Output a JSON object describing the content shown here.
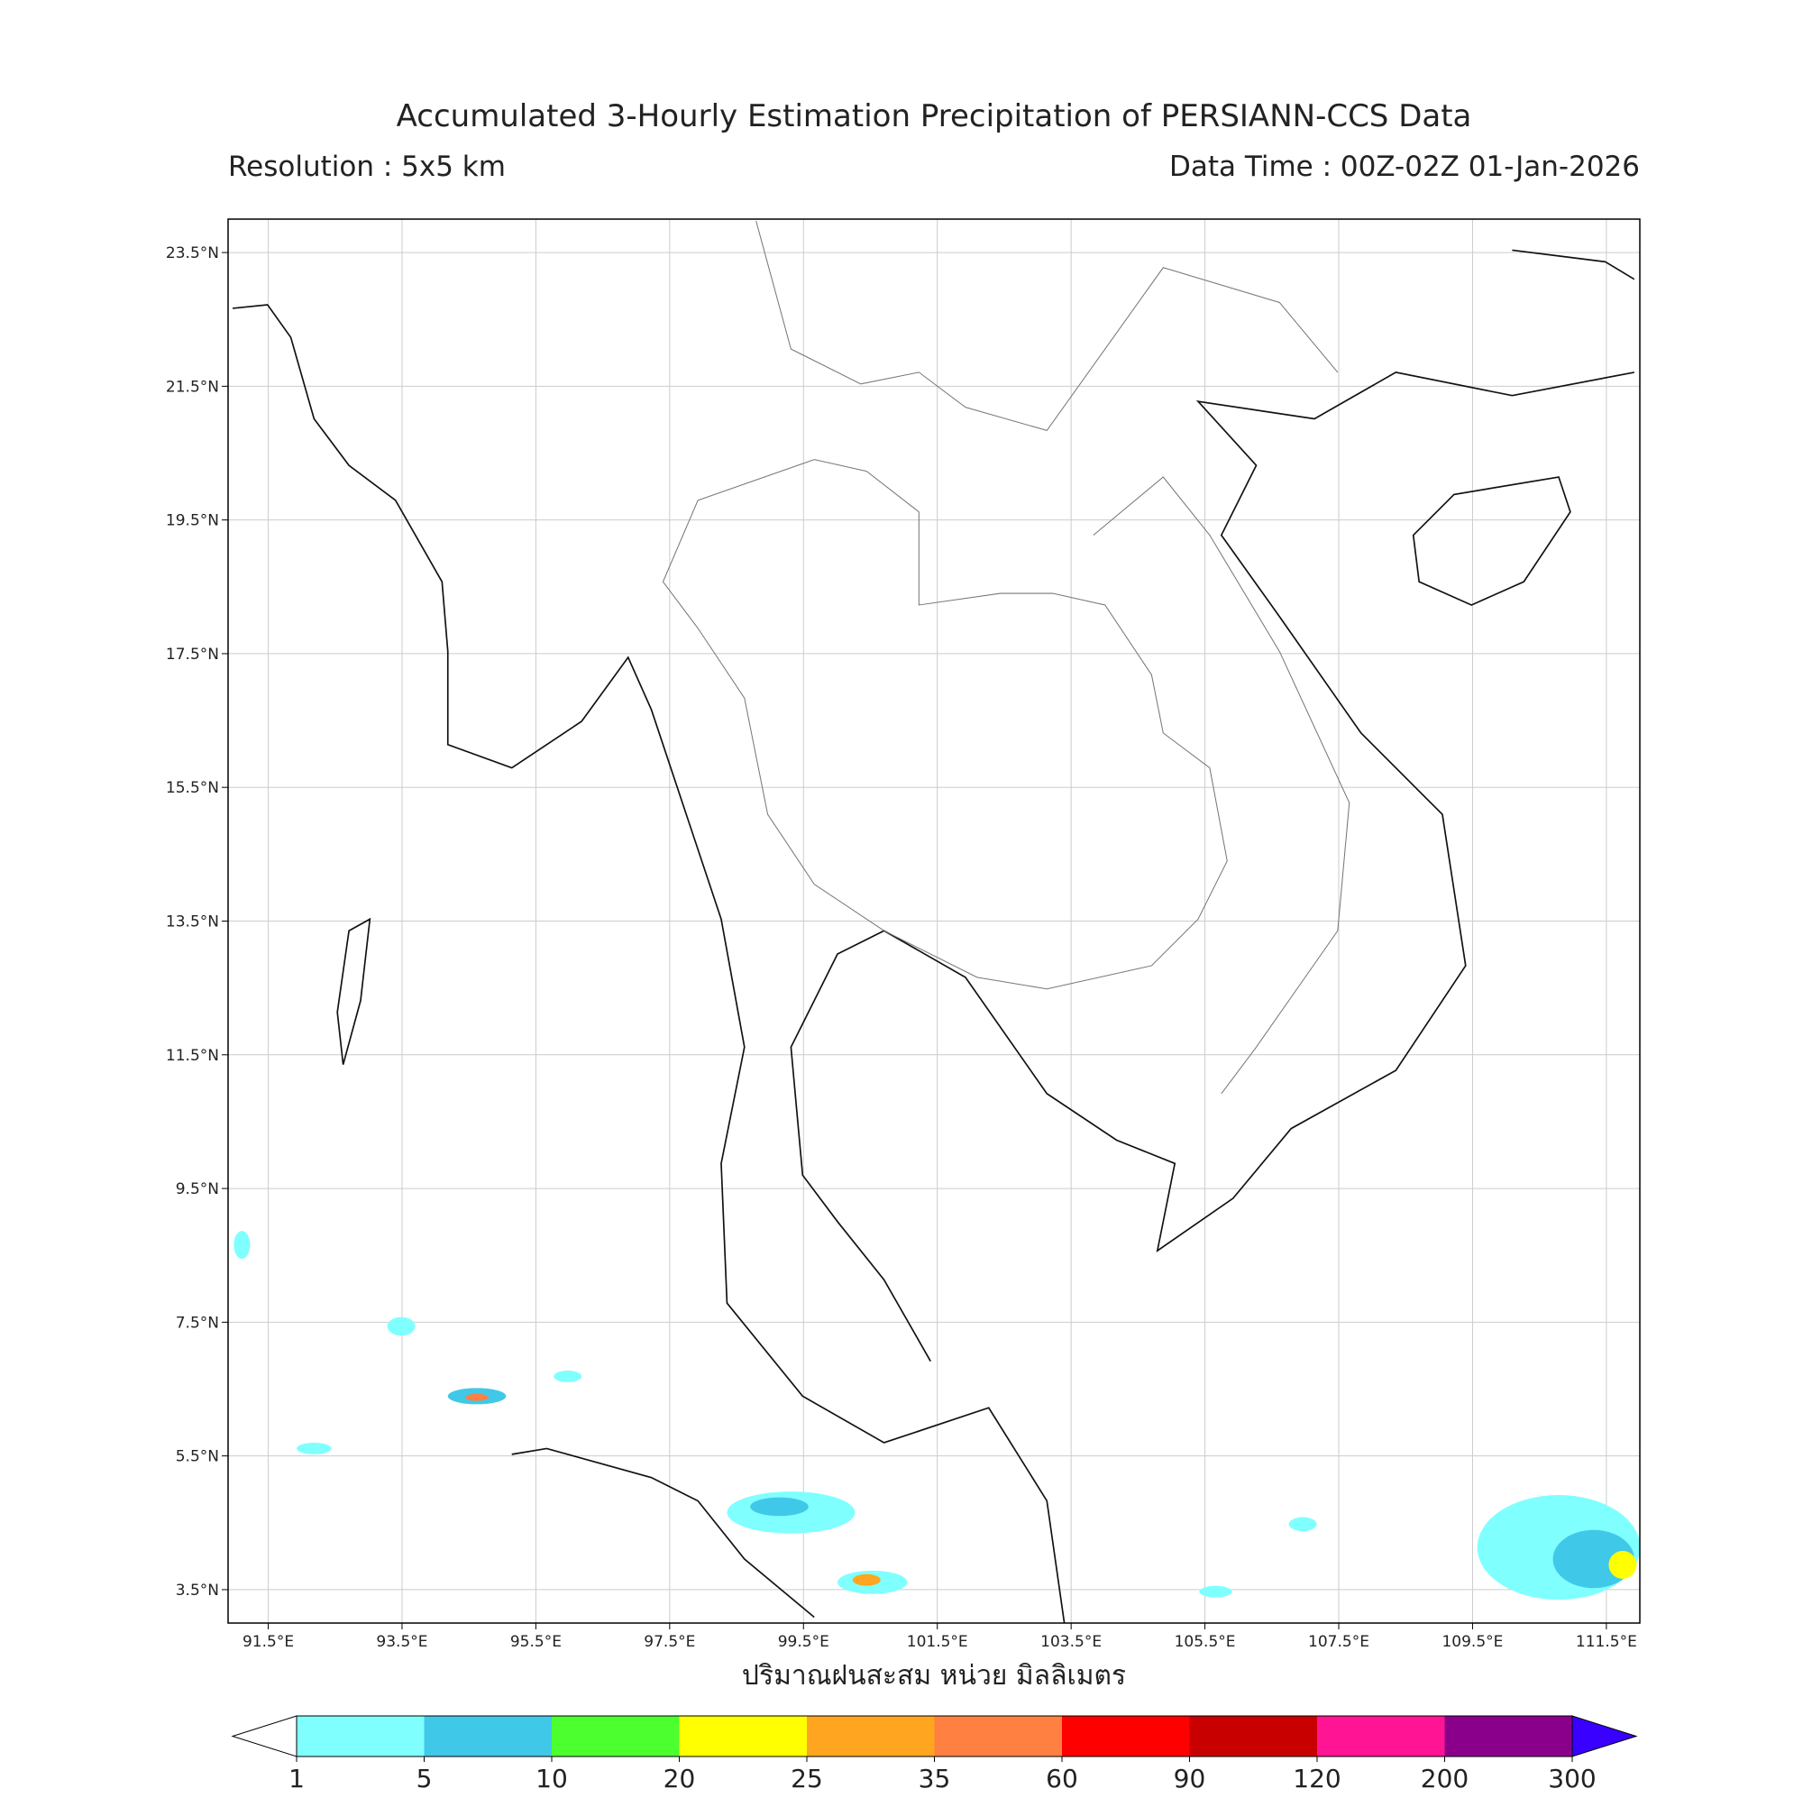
{
  "header": {
    "title": "Accumulated 3-Hourly Estimation Precipitation of PERSIANN-CCS Data",
    "resolution": "Resolution : 5x5 km",
    "data_time": "Data Time : 00Z-02Z 01-Jan-2026"
  },
  "map": {
    "lonlim": [
      90.9,
      112.0
    ],
    "latlim": [
      3.0,
      24.0
    ],
    "grid": true,
    "lonticks": [
      {
        "value": 91.5,
        "label": "91.5°E"
      },
      {
        "value": 93.5,
        "label": "93.5°E"
      },
      {
        "value": 95.5,
        "label": "95.5°E"
      },
      {
        "value": 97.5,
        "label": "97.5°E"
      },
      {
        "value": 99.5,
        "label": "99.5°E"
      },
      {
        "value": 101.5,
        "label": "101.5°E"
      },
      {
        "value": 103.5,
        "label": "103.5°E"
      },
      {
        "value": 105.5,
        "label": "105.5°E"
      },
      {
        "value": 107.5,
        "label": "107.5°E"
      },
      {
        "value": 109.5,
        "label": "109.5°E"
      },
      {
        "value": 111.5,
        "label": "111.5°E"
      }
    ],
    "latticks": [
      {
        "value": 3.5,
        "label": "3.5°N"
      },
      {
        "value": 5.5,
        "label": "5.5°N"
      },
      {
        "value": 7.5,
        "label": "7.5°N"
      },
      {
        "value": 9.5,
        "label": "9.5°N"
      },
      {
        "value": 11.5,
        "label": "11.5°N"
      },
      {
        "value": 13.5,
        "label": "13.5°N"
      },
      {
        "value": 15.5,
        "label": "15.5°N"
      },
      {
        "value": 17.5,
        "label": "17.5°N"
      },
      {
        "value": 19.5,
        "label": "19.5°N"
      },
      {
        "value": 21.5,
        "label": "21.5°N"
      },
      {
        "value": 23.5,
        "label": "23.5°N"
      }
    ],
    "xlabel": "ปริมาณฝนสะสม หน่วย มิลลิเมตร"
  },
  "colorbar": {
    "bounds": [
      1,
      5,
      10,
      20,
      25,
      35,
      60,
      90,
      120,
      200,
      300
    ],
    "colors": [
      "#80ffff",
      "#40c8e8",
      "#4cff2e",
      "#ffff00",
      "#ffa520",
      "#ff8040",
      "#ff0000",
      "#c80000",
      "#ff1493",
      "#8b008b"
    ],
    "under_color": "#ffffff",
    "over_color": "#3a00ff"
  }
}
